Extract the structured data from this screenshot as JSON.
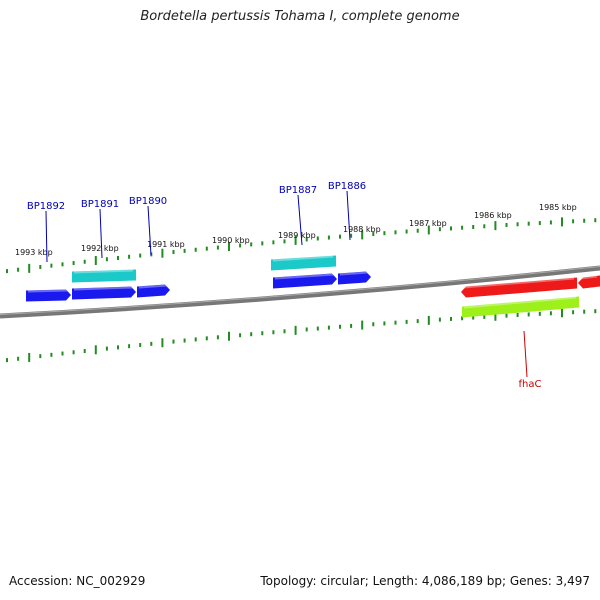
{
  "title": "Bordetella pertussis Tohama I, complete genome",
  "footer": {
    "accession_label": "Accession: NC_002929",
    "summary_label": "Topology: circular; Length: 4,086,189 bp; Genes: 3,497"
  },
  "colors": {
    "backbone": "#808080",
    "tick": "#228b22",
    "gene_blue": "#1a1aee",
    "gene_cyan": "#1cc9c9",
    "gene_red": "#ee1a1a",
    "gene_lime": "#9ef01a",
    "label_blue": "#0000b0",
    "label_red": "#cc0000"
  },
  "scale_labels": [
    "1993 kbp",
    "1992 kbp",
    "1991 kbp",
    "1990 kbp",
    "1989 kbp",
    "1988 kbp",
    "1987 kbp",
    "1986 kbp",
    "1985 kbp"
  ],
  "genes": [
    {
      "name": "BP1892",
      "color": "blue",
      "labeled": true
    },
    {
      "name": "",
      "color": "cyan",
      "labeled": false
    },
    {
      "name": "BP1891",
      "color": "blue",
      "labeled": true
    },
    {
      "name": "BP1890",
      "color": "blue",
      "labeled": true
    },
    {
      "name": "",
      "color": "cyan",
      "labeled": false
    },
    {
      "name": "BP1887",
      "color": "blue",
      "labeled": true
    },
    {
      "name": "BP1886",
      "color": "blue",
      "labeled": true
    },
    {
      "name": "",
      "color": "red",
      "labeled": false
    },
    {
      "name": "",
      "color": "red",
      "labeled": false
    },
    {
      "name": "fhaC",
      "color": "lime",
      "labeled": true
    }
  ]
}
